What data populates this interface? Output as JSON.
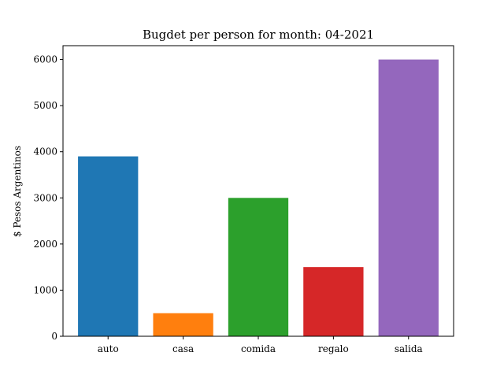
{
  "chart_data": {
    "type": "bar",
    "title": "Bugdet per person for month: 04-2021",
    "xlabel": "",
    "ylabel": "$ Pesos Argentinos",
    "categories": [
      "auto",
      "casa",
      "comida",
      "regalo",
      "salida"
    ],
    "values": [
      3900,
      500,
      3000,
      1500,
      6000
    ],
    "colors": [
      "#1f77b4",
      "#ff7f0e",
      "#2ca02c",
      "#d62728",
      "#9467bd"
    ],
    "ylim": [
      0,
      6300
    ],
    "yticks": [
      0,
      1000,
      2000,
      3000,
      4000,
      5000,
      6000
    ],
    "grid": false,
    "legend": "none"
  }
}
